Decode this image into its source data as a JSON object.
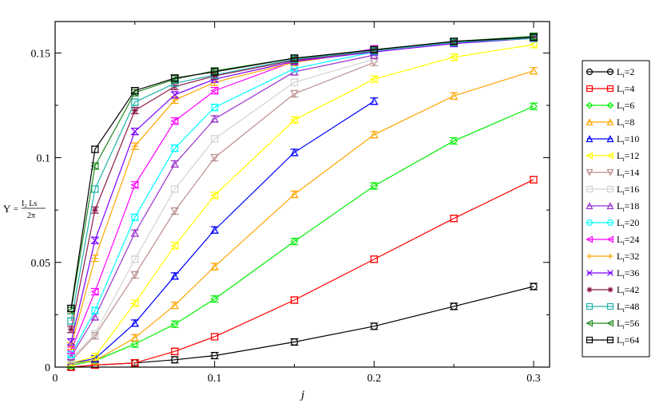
{
  "chart_data": {
    "type": "line",
    "xlabel": "j",
    "ylabel": {
      "symbol": "Υ",
      "equals": "=",
      "numerator": "I₂ Ls",
      "denominator": "2π"
    },
    "xlim": [
      0,
      0.31
    ],
    "ylim": [
      0,
      0.165
    ],
    "xticks": [
      0,
      0.1,
      0.2,
      0.3
    ],
    "xtick_labels": [
      "0",
      "0.1",
      "0.2",
      "0.3"
    ],
    "yticks": [
      0,
      0.05,
      0.1,
      0.15
    ],
    "ytick_labels": [
      "0",
      "0.05",
      "0.1",
      "0.15"
    ],
    "grid": false,
    "legend_position": "right",
    "series": [
      {
        "name": "Lt=2",
        "legend_main": "L",
        "legend_sub": "t",
        "legend_rest": "=2",
        "color": "#000000",
        "marker": "circle",
        "x": [
          0.01,
          0.025,
          0.05,
          0.075,
          0.1,
          0.15,
          0.2,
          0.25,
          0.3
        ],
        "y": [
          0.0,
          0.001,
          0.002,
          0.0035,
          0.0055,
          0.012,
          0.0195,
          0.029,
          0.0385
        ]
      },
      {
        "name": "Lt=4",
        "legend_main": "L",
        "legend_sub": "t",
        "legend_rest": "=4",
        "color": "#ff0000",
        "marker": "square",
        "x": [
          0.01,
          0.025,
          0.05,
          0.075,
          0.1,
          0.15,
          0.2,
          0.25,
          0.3
        ],
        "y": [
          0.0,
          0.001,
          0.002,
          0.0075,
          0.0145,
          0.032,
          0.0515,
          0.071,
          0.0895
        ]
      },
      {
        "name": "Lt=6",
        "legend_main": "L",
        "legend_sub": "t",
        "legend_rest": "=6",
        "color": "#00ee00",
        "marker": "diamond",
        "x": [
          0.01,
          0.025,
          0.05,
          0.075,
          0.1,
          0.15,
          0.2,
          0.25,
          0.3
        ],
        "y": [
          0.001,
          0.003,
          0.011,
          0.0205,
          0.0325,
          0.06,
          0.0865,
          0.108,
          0.1245
        ]
      },
      {
        "name": "Lt=8",
        "legend_main": "L",
        "legend_sub": "t",
        "legend_rest": "=8",
        "color": "#ffa500",
        "marker": "triangle-up",
        "x": [
          0.01,
          0.025,
          0.05,
          0.075,
          0.1,
          0.15,
          0.2,
          0.25,
          0.3
        ],
        "y": [
          0.002,
          0.003,
          0.014,
          0.0295,
          0.048,
          0.0825,
          0.111,
          0.1295,
          0.1415
        ]
      },
      {
        "name": "Lt=10",
        "legend_main": "L",
        "legend_sub": "t",
        "legend_rest": "=10",
        "color": "#0000ff",
        "marker": "triangle-up",
        "x": [
          0.01,
          0.025,
          0.05,
          0.075,
          0.1,
          0.15,
          0.2
        ],
        "y": [
          0.002,
          0.004,
          0.021,
          0.0435,
          0.0655,
          0.1025,
          0.127
        ]
      },
      {
        "name": "Lt=12",
        "legend_main": "L",
        "legend_sub": "t",
        "legend_rest": "=12",
        "color": "#ffff00",
        "marker": "triangle-left",
        "x": [
          0.01,
          0.025,
          0.05,
          0.075,
          0.1,
          0.15,
          0.2,
          0.25,
          0.3
        ],
        "y": [
          0.002,
          0.005,
          0.0305,
          0.058,
          0.082,
          0.118,
          0.1375,
          0.148,
          0.154
        ]
      },
      {
        "name": "Lt=14",
        "legend_main": "L",
        "legend_sub": "t",
        "legend_rest": "=14",
        "color": "#bc8f8f",
        "marker": "triangle-down",
        "x": [
          0.01,
          0.025,
          0.05,
          0.075,
          0.1,
          0.15,
          0.2
        ],
        "y": [
          0.003,
          0.015,
          0.044,
          0.0745,
          0.1,
          0.1305,
          0.1455
        ]
      },
      {
        "name": "Lt=16",
        "legend_main": "L",
        "legend_sub": "t",
        "legend_rest": "=16",
        "color": "#d3d3d3",
        "marker": "square",
        "x": [
          0.01,
          0.025,
          0.05,
          0.075,
          0.1,
          0.15,
          0.2
        ],
        "y": [
          0.004,
          0.016,
          0.0515,
          0.085,
          0.109,
          0.136,
          0.147
        ]
      },
      {
        "name": "Lt=18",
        "legend_main": "L",
        "legend_sub": "t",
        "legend_rest": "=18",
        "color": "#9932cc",
        "marker": "triangle-up",
        "x": [
          0.01,
          0.025,
          0.05,
          0.075,
          0.1,
          0.15,
          0.2
        ],
        "y": [
          0.005,
          0.024,
          0.064,
          0.097,
          0.1185,
          0.141,
          0.149
        ]
      },
      {
        "name": "Lt=20",
        "legend_main": "L",
        "legend_sub": "t",
        "legend_rest": "=20",
        "color": "#00ffff",
        "marker": "circle",
        "x": [
          0.01,
          0.025,
          0.05,
          0.075,
          0.1,
          0.15,
          0.2
        ],
        "y": [
          0.006,
          0.027,
          0.0715,
          0.1045,
          0.124,
          0.1425,
          0.1505
        ]
      },
      {
        "name": "Lt=24",
        "legend_main": "L",
        "legend_sub": "t",
        "legend_rest": "=24",
        "color": "#ff00ff",
        "marker": "triangle-left",
        "x": [
          0.01,
          0.025,
          0.05,
          0.075,
          0.1,
          0.15,
          0.2
        ],
        "y": [
          0.008,
          0.036,
          0.087,
          0.1175,
          0.132,
          0.146,
          0.152
        ]
      },
      {
        "name": "Lt=32",
        "legend_main": "L",
        "legend_sub": "t",
        "legend_rest": "=32",
        "color": "#ffa500",
        "marker": "plus",
        "x": [
          0.01,
          0.025,
          0.05,
          0.075,
          0.1,
          0.15,
          0.2
        ],
        "y": [
          0.01,
          0.052,
          0.1055,
          0.1275,
          0.136,
          0.1455,
          0.151
        ]
      },
      {
        "name": "Lt=36",
        "legend_main": "L",
        "legend_sub": "t",
        "legend_rest": "=36",
        "color": "#7b00ff",
        "marker": "cross",
        "x": [
          0.01,
          0.025,
          0.05,
          0.075,
          0.1,
          0.15,
          0.2,
          0.25,
          0.3
        ],
        "y": [
          0.012,
          0.0605,
          0.1125,
          0.13,
          0.1375,
          0.146,
          0.1505,
          0.1545,
          0.157
        ]
      },
      {
        "name": "Lt=42",
        "legend_main": "L",
        "legend_sub": "t",
        "legend_rest": "=42",
        "color": "#8b1a4a",
        "marker": "star",
        "x": [
          0.01,
          0.025,
          0.05,
          0.075,
          0.1,
          0.15,
          0.2,
          0.25,
          0.3
        ],
        "y": [
          0.018,
          0.075,
          0.1225,
          0.134,
          0.139,
          0.1465,
          0.151,
          0.155,
          0.1575
        ]
      },
      {
        "name": "Lt=48",
        "legend_main": "L",
        "legend_sub": "t",
        "legend_rest": "=48",
        "color": "#20b2aa",
        "marker": "square",
        "x": [
          0.01,
          0.025,
          0.05,
          0.075,
          0.1,
          0.15,
          0.2,
          0.25,
          0.3
        ],
        "y": [
          0.022,
          0.085,
          0.1265,
          0.1355,
          0.1395,
          0.147,
          0.151,
          0.155,
          0.157
        ]
      },
      {
        "name": "Lt=56",
        "legend_main": "L",
        "legend_sub": "t",
        "legend_rest": "=56",
        "color": "#228b22",
        "marker": "triangle-left",
        "x": [
          0.01,
          0.025,
          0.05,
          0.075,
          0.1,
          0.15,
          0.2,
          0.25,
          0.3
        ],
        "y": [
          0.027,
          0.096,
          0.131,
          0.1375,
          0.1415,
          0.1475,
          0.1515,
          0.1555,
          0.158
        ]
      },
      {
        "name": "Lt=64",
        "legend_main": "L",
        "legend_sub": "t",
        "legend_rest": "=64",
        "color": "#000000",
        "marker": "square",
        "x": [
          0.01,
          0.025,
          0.05,
          0.075,
          0.1,
          0.15,
          0.2,
          0.25,
          0.3
        ],
        "y": [
          0.028,
          0.104,
          0.132,
          0.138,
          0.141,
          0.1475,
          0.1515,
          0.1555,
          0.1575
        ]
      }
    ]
  }
}
